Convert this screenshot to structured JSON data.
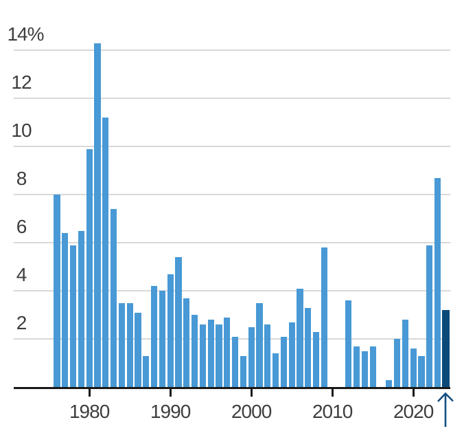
{
  "chart_data": {
    "type": "bar",
    "title": "",
    "unit": "percent",
    "years": [
      1976,
      1977,
      1978,
      1979,
      1980,
      1981,
      1982,
      1983,
      1984,
      1985,
      1986,
      1987,
      1988,
      1989,
      1990,
      1991,
      1992,
      1993,
      1994,
      1995,
      1996,
      1997,
      1998,
      1999,
      2000,
      2001,
      2002,
      2003,
      2004,
      2005,
      2006,
      2007,
      2008,
      2009,
      2010,
      2011,
      2012,
      2013,
      2014,
      2015,
      2016,
      2017,
      2018,
      2019,
      2020,
      2021,
      2022,
      2023,
      2024
    ],
    "values": [
      8.0,
      6.4,
      5.9,
      6.5,
      9.9,
      14.3,
      11.2,
      7.4,
      3.5,
      3.5,
      3.1,
      1.3,
      4.2,
      4.0,
      4.7,
      5.4,
      3.7,
      3.0,
      2.6,
      2.8,
      2.6,
      2.9,
      2.1,
      1.3,
      2.5,
      3.5,
      2.6,
      1.4,
      2.1,
      2.7,
      4.1,
      3.3,
      2.3,
      5.8,
      0,
      0,
      3.6,
      1.7,
      1.5,
      1.7,
      0,
      0.3,
      2.0,
      2.8,
      1.6,
      1.3,
      5.9,
      8.7,
      3.2
    ],
    "highlight_year": 2024,
    "y_ticks": [
      {
        "value": 2,
        "label": "2"
      },
      {
        "value": 4,
        "label": "4"
      },
      {
        "value": 6,
        "label": "6"
      },
      {
        "value": 8,
        "label": "8"
      },
      {
        "value": 10,
        "label": "10"
      },
      {
        "value": 12,
        "label": "12"
      },
      {
        "value": 14,
        "label": "14%"
      }
    ],
    "x_ticks": [
      {
        "year": 1980,
        "label": "1980"
      },
      {
        "year": 1990,
        "label": "1990"
      },
      {
        "year": 2000,
        "label": "2000"
      },
      {
        "year": 2010,
        "label": "2010"
      },
      {
        "year": 2020,
        "label": "2020"
      }
    ],
    "ylim": [
      0,
      14.5
    ],
    "grid": true,
    "legend": "none",
    "annotation": {
      "type": "up-arrow",
      "target_year": 2024
    },
    "colors": {
      "bar": "#4899d5",
      "highlight_bar": "#0b4a78",
      "arrow": "#154e80",
      "gridline": "#d8d8d8",
      "axis": "#1a1a1a",
      "label_text": "#3e3e3e"
    }
  }
}
